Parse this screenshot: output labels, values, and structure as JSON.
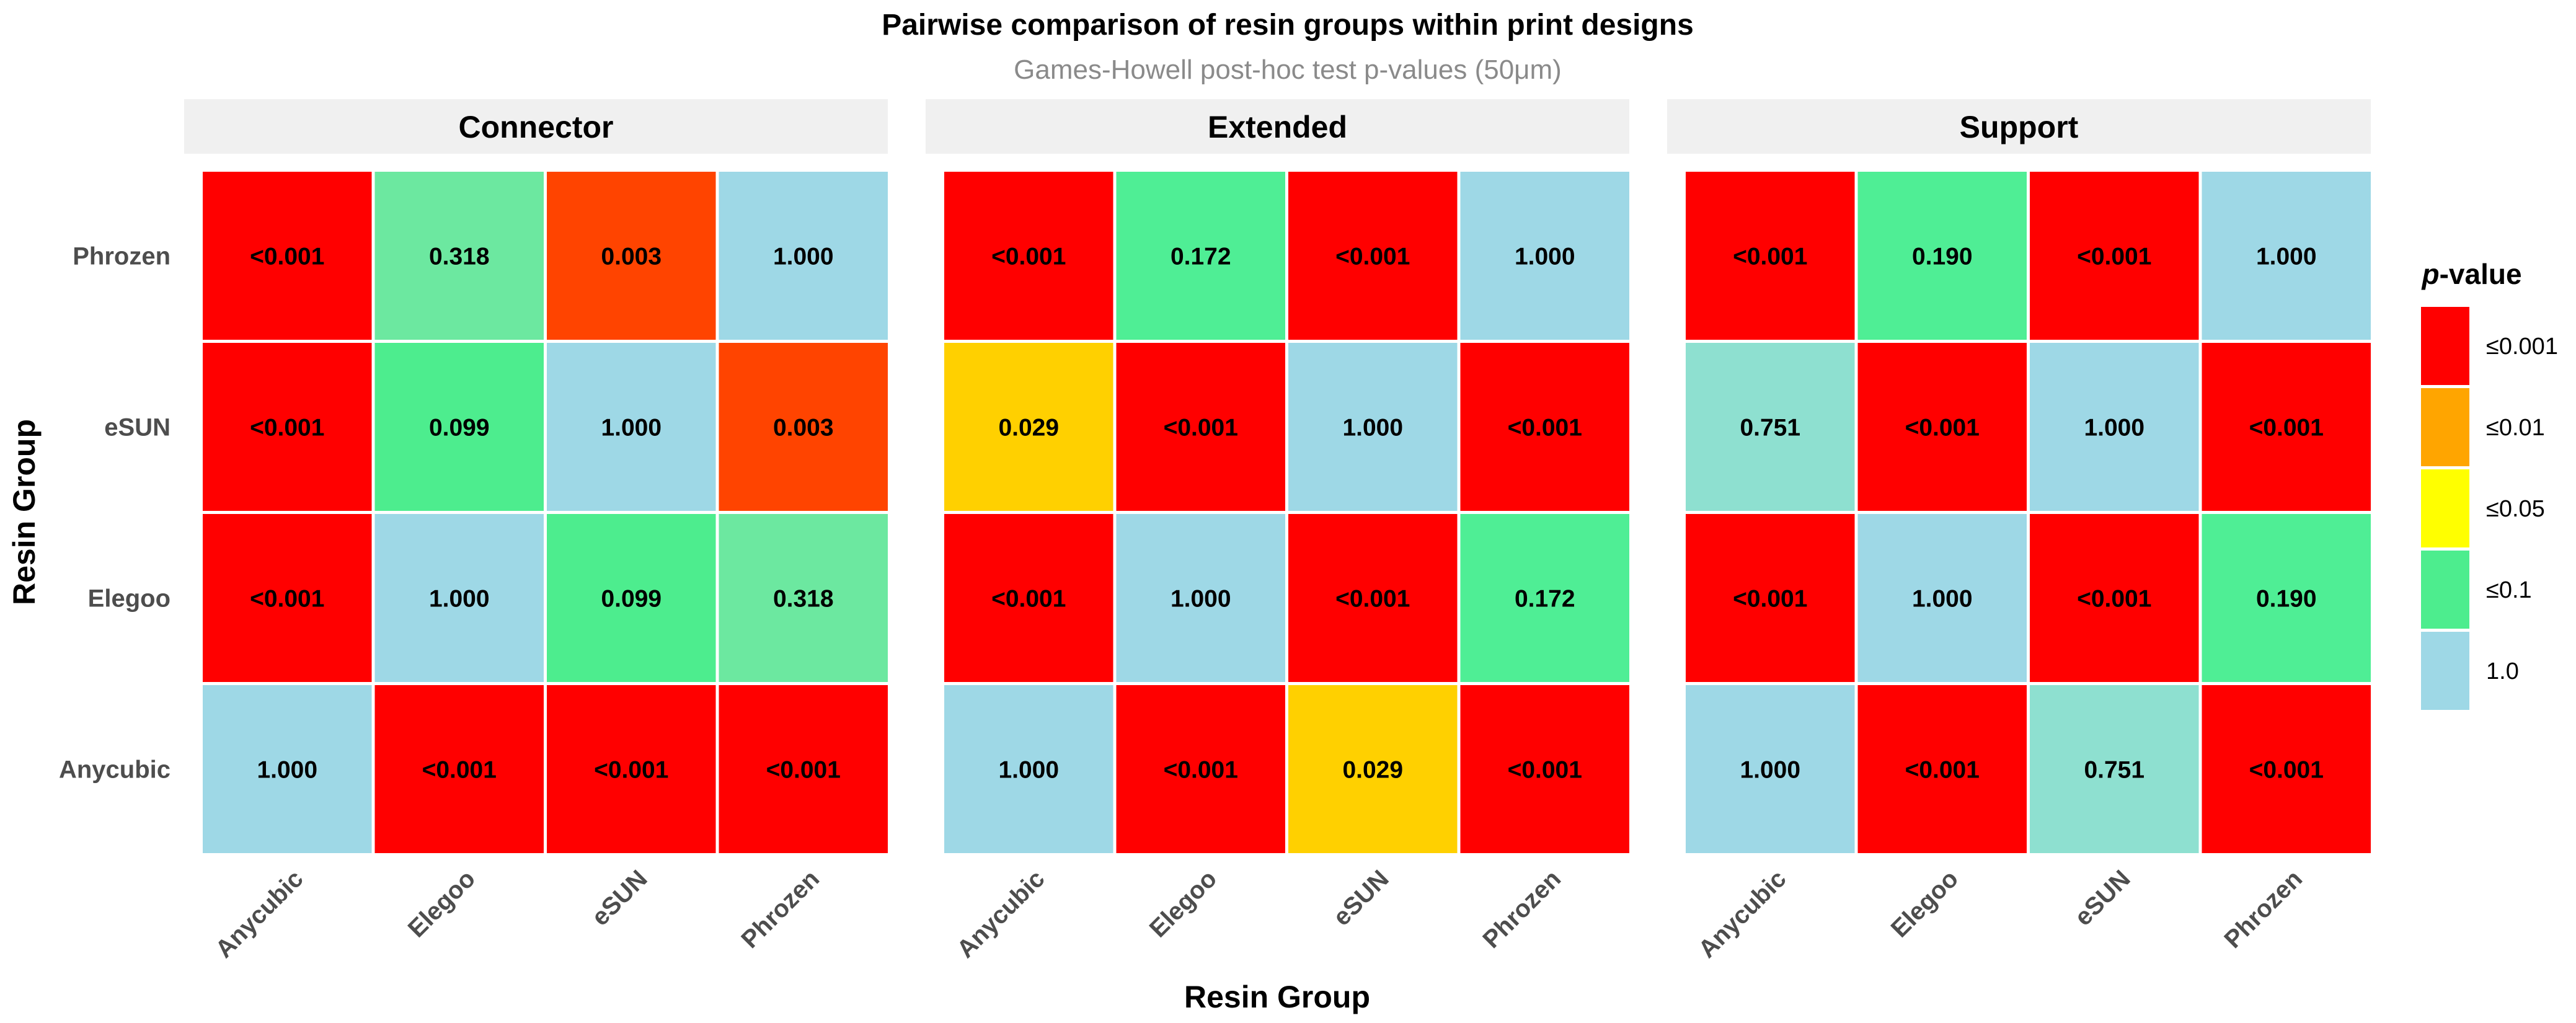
{
  "chart_data": {
    "type": "heatmap",
    "title": "Pairwise comparison of resin groups within print designs",
    "subtitle": "Games-Howell post-hoc test p-values (50μm)",
    "xlabel": "Resin Group",
    "ylabel": "Resin Group",
    "x_categories": [
      "Anycubic",
      "Elegoo",
      "eSUN",
      "Phrozen"
    ],
    "y_categories_top_to_bottom": [
      "Phrozen",
      "eSUN",
      "Elegoo",
      "Anycubic"
    ],
    "legend": {
      "title_italic": "p",
      "title_rest": "-value",
      "items": [
        {
          "label": "≤0.001",
          "color": "#ff0000"
        },
        {
          "label": "≤0.01",
          "color": "#ffa500"
        },
        {
          "label": "≤0.05",
          "color": "#ffff00"
        },
        {
          "label": "≤0.1",
          "color": "#4ded8e"
        },
        {
          "label": "1.0",
          "color": "#9ed8e6"
        }
      ]
    },
    "panels": [
      {
        "name": "Connector",
        "rows": [
          {
            "y": "Phrozen",
            "labels": [
              "<0.001",
              "0.318",
              "0.003",
              "1.000"
            ],
            "colors": [
              "#ff0000",
              "#6ce8a0",
              "#ff4400",
              "#9ed8e6"
            ]
          },
          {
            "y": "eSUN",
            "labels": [
              "<0.001",
              "0.099",
              "1.000",
              "0.003"
            ],
            "colors": [
              "#ff0000",
              "#4ded8e",
              "#9ed8e6",
              "#ff4400"
            ]
          },
          {
            "y": "Elegoo",
            "labels": [
              "<0.001",
              "1.000",
              "0.099",
              "0.318"
            ],
            "colors": [
              "#ff0000",
              "#9ed8e6",
              "#4ded8e",
              "#6ce8a0"
            ]
          },
          {
            "y": "Anycubic",
            "labels": [
              "1.000",
              "<0.001",
              "<0.001",
              "<0.001"
            ],
            "colors": [
              "#9ed8e6",
              "#ff0000",
              "#ff0000",
              "#ff0000"
            ]
          }
        ]
      },
      {
        "name": "Extended",
        "rows": [
          {
            "y": "Phrozen",
            "labels": [
              "<0.001",
              "0.172",
              "<0.001",
              "1.000"
            ],
            "colors": [
              "#ff0000",
              "#4fee95",
              "#ff0000",
              "#9ed8e6"
            ]
          },
          {
            "y": "eSUN",
            "labels": [
              "0.029",
              "<0.001",
              "1.000",
              "<0.001"
            ],
            "colors": [
              "#ffd000",
              "#ff0000",
              "#9ed8e6",
              "#ff0000"
            ]
          },
          {
            "y": "Elegoo",
            "labels": [
              "<0.001",
              "1.000",
              "<0.001",
              "0.172"
            ],
            "colors": [
              "#ff0000",
              "#9ed8e6",
              "#ff0000",
              "#4fee95"
            ]
          },
          {
            "y": "Anycubic",
            "labels": [
              "1.000",
              "<0.001",
              "0.029",
              "<0.001"
            ],
            "colors": [
              "#9ed8e6",
              "#ff0000",
              "#ffd000",
              "#ff0000"
            ]
          }
        ]
      },
      {
        "name": "Support",
        "rows": [
          {
            "y": "Phrozen",
            "labels": [
              "<0.001",
              "0.190",
              "<0.001",
              "1.000"
            ],
            "colors": [
              "#ff0000",
              "#4fee95",
              "#ff0000",
              "#9ed8e6"
            ]
          },
          {
            "y": "eSUN",
            "labels": [
              "0.751",
              "<0.001",
              "1.000",
              "<0.001"
            ],
            "colors": [
              "#8ee0d0",
              "#ff0000",
              "#9ed8e6",
              "#ff0000"
            ]
          },
          {
            "y": "Elegoo",
            "labels": [
              "<0.001",
              "1.000",
              "<0.001",
              "0.190"
            ],
            "colors": [
              "#ff0000",
              "#9ed8e6",
              "#ff0000",
              "#4fee95"
            ]
          },
          {
            "y": "Anycubic",
            "labels": [
              "1.000",
              "<0.001",
              "0.751",
              "<0.001"
            ],
            "colors": [
              "#9ed8e6",
              "#ff0000",
              "#8ee0d0",
              "#ff0000"
            ]
          }
        ]
      }
    ]
  }
}
